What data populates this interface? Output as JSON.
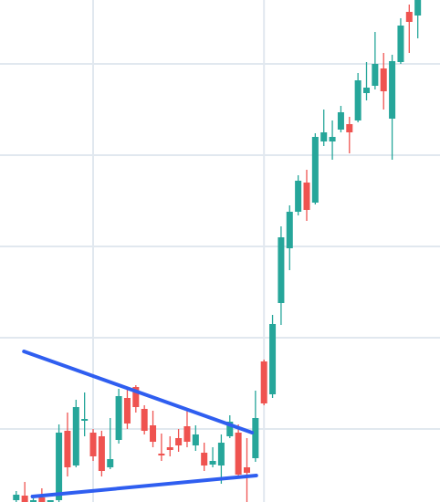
{
  "chart_data": {
    "type": "candlestick",
    "x": [
      0,
      1,
      2,
      3,
      4,
      5,
      6,
      7,
      8,
      9,
      10,
      11,
      12,
      13,
      14,
      15,
      16,
      17,
      18,
      19,
      20,
      21,
      22,
      23,
      24,
      25,
      26,
      27,
      28,
      29,
      30,
      31,
      32,
      33,
      34,
      35,
      36,
      37,
      38,
      39,
      40,
      41,
      42,
      43,
      44,
      45,
      46,
      47
    ],
    "open": [
      2,
      7,
      0,
      5,
      0,
      2,
      78,
      40,
      89,
      76,
      72,
      38,
      68,
      114,
      126,
      102,
      84,
      53,
      60,
      70,
      83,
      62,
      54,
      41,
      40,
      72,
      76,
      38,
      48,
      154,
      118,
      218,
      278,
      318,
      350,
      328,
      395,
      395,
      408,
      414,
      418,
      448,
      456,
      475,
      420,
      482,
      537,
      533
    ],
    "high": [
      12,
      22,
      4,
      15,
      2,
      85,
      98,
      112,
      120,
      80,
      78,
      92,
      124,
      124,
      128,
      106,
      100,
      75,
      72,
      80,
      100,
      84,
      65,
      60,
      74,
      95,
      85,
      70,
      122,
      156,
      205,
      302,
      325,
      358,
      364,
      404,
      430,
      418,
      434,
      422,
      470,
      482,
      515,
      492,
      490,
      530,
      545,
      550
    ],
    "low": [
      0,
      0,
      0,
      0,
      0,
      0,
      28,
      38,
      72,
      45,
      28,
      36,
      64,
      80,
      98,
      74,
      60,
      45,
      50,
      55,
      60,
      56,
      34,
      38,
      20,
      70,
      26,
      0,
      44,
      106,
      114,
      194,
      254,
      314,
      308,
      326,
      390,
      375,
      405,
      382,
      416,
      440,
      452,
      430,
      375,
      480,
      492,
      508
    ],
    "close": [
      8,
      0,
      2,
      0,
      2,
      76,
      38,
      104,
      91,
      50,
      34,
      47,
      116,
      86,
      104,
      78,
      66,
      51,
      57,
      62,
      66,
      74,
      40,
      45,
      65,
      88,
      30,
      32,
      92,
      108,
      195,
      290,
      318,
      352,
      320,
      400,
      405,
      400,
      427,
      405,
      462,
      454,
      480,
      450,
      483,
      522,
      526,
      550
    ],
    "up_color": "#26a69a",
    "down_color": "#ef5350",
    "xlim": [
      -1.9,
      49.6
    ],
    "ylim": [
      0,
      550
    ],
    "xticks": [
      9,
      29
    ],
    "yticks": [
      80,
      180,
      280,
      380,
      480
    ],
    "grid": true,
    "grid_color": "#e1e8ef",
    "trendlines": [
      {
        "color": "#2f5ef0",
        "x": [
          0.9,
          27.6
        ],
        "y": [
          165,
          76
        ]
      },
      {
        "color": "#2f5ef0",
        "x": [
          1.9,
          28.1
        ],
        "y": [
          6,
          29
        ]
      }
    ]
  }
}
